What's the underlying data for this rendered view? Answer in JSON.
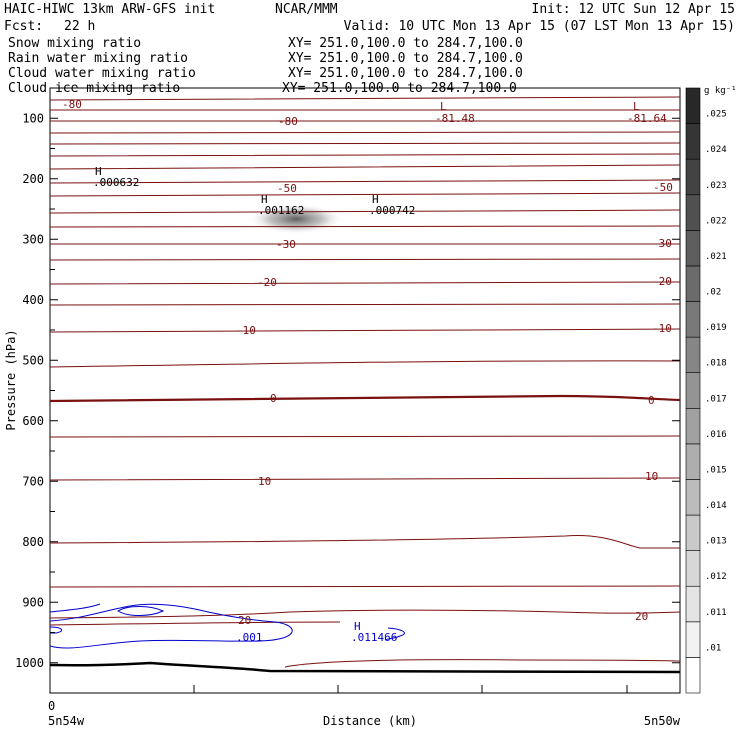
{
  "header": {
    "model": "HAIC-HIWC 13km ARW-GFS init",
    "center": "NCAR/MMM",
    "init": "Init: 12 UTC Sun 12 Apr 15",
    "fcst_label": "Fcst:",
    "fcst_value": "22 h",
    "valid": "Valid: 10 UTC Mon 13 Apr 15 (07 LST Mon 13 Apr 15)"
  },
  "fields": [
    {
      "name": "Snow mixing ratio",
      "xy": "XY= 251.0,100.0 to 284.7,100.0",
      "color": "#000000"
    },
    {
      "name": "Rain water mixing ratio",
      "xy": "XY= 251.0,100.0 to 284.7,100.0",
      "color": "#dd0000"
    },
    {
      "name": "Cloud water mixing ratio",
      "xy": "XY= 251.0,100.0 to 284.7,100.0",
      "color": "#0000cc"
    },
    {
      "name": "Cloud ice mixing ratio",
      "xy": "XY= 251.0,100.0 to 284.7,100.0",
      "color": "#000000"
    }
  ],
  "chart_data": {
    "type": "contour cross-section",
    "xlabel": "Distance (km)",
    "ylabel": "Pressure (hPa)",
    "x_start_tick": "0",
    "x_left_label": "5n54w",
    "x_right_label": "5n50w",
    "pressure_range_hpa": [
      1050,
      50
    ],
    "pressure_ticks": [
      100,
      200,
      300,
      400,
      500,
      600,
      700,
      800,
      900,
      1000
    ],
    "colorbar": {
      "unit": "g kg⁻¹",
      "levels": [
        ".01",
        ".011",
        ".012",
        ".013",
        ".014",
        ".015",
        ".016",
        ".017",
        ".018",
        ".019",
        ".02",
        ".021",
        ".022",
        ".023",
        ".024",
        ".025"
      ]
    },
    "temperature_contours": [
      {
        "label": "-80",
        "color": "#7a1010"
      },
      {
        "label": "-50",
        "color": "#7a1010"
      },
      {
        "label": "-30",
        "color": "#7a1010"
      },
      {
        "label": "-20",
        "color": "#7a1010"
      },
      {
        "label": "-10",
        "color": "#7a1010"
      },
      {
        "label": "0",
        "color": "#7a1010"
      },
      {
        "label": "10",
        "color": "#7a1010"
      },
      {
        "label": "20",
        "color": "#7a1010"
      }
    ],
    "extrema": [
      {
        "type": "H",
        "value": ".000632",
        "color": "#000000"
      },
      {
        "type": "H",
        "value": ".001162",
        "color": "#000000"
      },
      {
        "type": "H",
        "value": ".000742",
        "color": "#000000"
      },
      {
        "type": "L",
        "value": "-81.48",
        "color": "#7a1010"
      },
      {
        "type": "L",
        "value": "-81.64",
        "color": "#7a1010"
      },
      {
        "type": "H",
        "value": ".011466",
        "color": "#0000cc"
      }
    ],
    "cloud_water_contour_label": ".001"
  }
}
